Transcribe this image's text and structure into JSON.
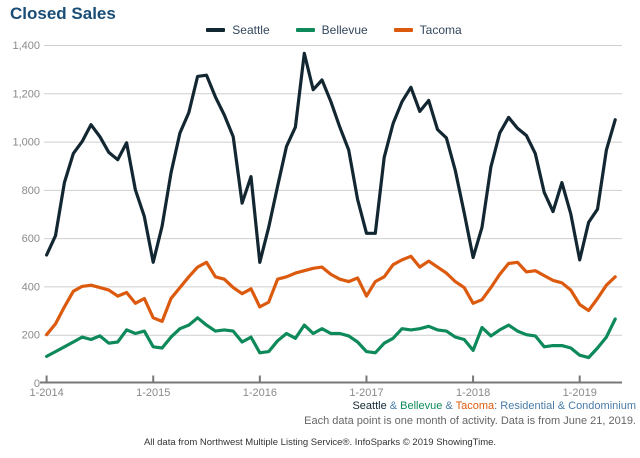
{
  "title": "Closed Sales",
  "chart_data": {
    "type": "line",
    "title": "Closed Sales",
    "x_unit": "month",
    "x_range": [
      "1-2014",
      "5-2019"
    ],
    "points_per_series": 65,
    "x_ticks": [
      {
        "label": "1-2014",
        "month_index": 0
      },
      {
        "label": "1-2015",
        "month_index": 12
      },
      {
        "label": "1-2016",
        "month_index": 24
      },
      {
        "label": "1-2017",
        "month_index": 36
      },
      {
        "label": "1-2018",
        "month_index": 48
      },
      {
        "label": "1-2019",
        "month_index": 60
      }
    ],
    "y_ticks": [
      {
        "label": "1,400",
        "value": 1400
      },
      {
        "label": "1,200",
        "value": 1200
      },
      {
        "label": "1,000",
        "value": 1000
      },
      {
        "label": "800",
        "value": 800
      },
      {
        "label": "600",
        "value": 600
      },
      {
        "label": "400",
        "value": 400
      },
      {
        "label": "200",
        "value": 200
      },
      {
        "label": "0",
        "value": 0
      }
    ],
    "ylim": [
      0,
      1400
    ],
    "grid": "horizontal",
    "legend_position": "top-center",
    "series": [
      {
        "name": "Seattle",
        "color": "#122731",
        "values": [
          530,
          610,
          830,
          950,
          1000,
          1070,
          1020,
          955,
          925,
          995,
          800,
          690,
          500,
          650,
          870,
          1035,
          1120,
          1270,
          1275,
          1185,
          1110,
          1020,
          745,
          855,
          500,
          645,
          815,
          980,
          1060,
          1365,
          1215,
          1255,
          1165,
          1060,
          965,
          760,
          620,
          620,
          935,
          1075,
          1165,
          1225,
          1125,
          1170,
          1050,
          1015,
          880,
          705,
          520,
          645,
          895,
          1035,
          1100,
          1055,
          1025,
          950,
          790,
          710,
          830,
          700,
          510,
          665,
          720,
          965,
          1090
        ]
      },
      {
        "name": "Bellevue",
        "color": "#0e8a5a",
        "values": [
          110,
          130,
          150,
          170,
          190,
          180,
          195,
          165,
          170,
          220,
          205,
          215,
          150,
          145,
          190,
          225,
          240,
          270,
          240,
          215,
          220,
          215,
          170,
          190,
          125,
          130,
          175,
          205,
          185,
          240,
          205,
          225,
          205,
          205,
          195,
          170,
          130,
          125,
          165,
          185,
          225,
          220,
          225,
          235,
          220,
          215,
          190,
          180,
          135,
          230,
          195,
          220,
          240,
          215,
          200,
          195,
          150,
          155,
          155,
          145,
          115,
          105,
          145,
          190,
          265
        ]
      },
      {
        "name": "Tacoma",
        "color": "#dc5a0e",
        "values": [
          200,
          245,
          315,
          380,
          400,
          405,
          395,
          385,
          360,
          375,
          330,
          350,
          270,
          255,
          350,
          395,
          440,
          480,
          500,
          440,
          430,
          395,
          370,
          390,
          315,
          335,
          430,
          440,
          455,
          465,
          475,
          480,
          450,
          430,
          420,
          435,
          360,
          420,
          440,
          490,
          510,
          525,
          480,
          505,
          480,
          455,
          420,
          395,
          330,
          345,
          395,
          450,
          495,
          500,
          460,
          465,
          445,
          425,
          415,
          385,
          325,
          300,
          350,
          405,
          440
        ]
      }
    ]
  },
  "footnote": {
    "series_part1": "Seattle",
    "amp1": " & ",
    "series_part2": "Bellevue",
    "amp2": " & ",
    "series_part3": "Tacoma",
    "rest": ": Residential & Condominium",
    "line2": "Each data point is one month of activity. Data is from June 21, 2019.",
    "line3": "All data from Northwest Multiple Listing Service®. InfoSparks © 2019 ShowingTime."
  },
  "colors": {
    "title": "#1a4d76",
    "axis": "#777777",
    "gridline": "#cfcfcf",
    "tick_label": "#8a8a8a",
    "footnote_blue": "#4a7ba6",
    "footnote_gray": "#666666"
  }
}
